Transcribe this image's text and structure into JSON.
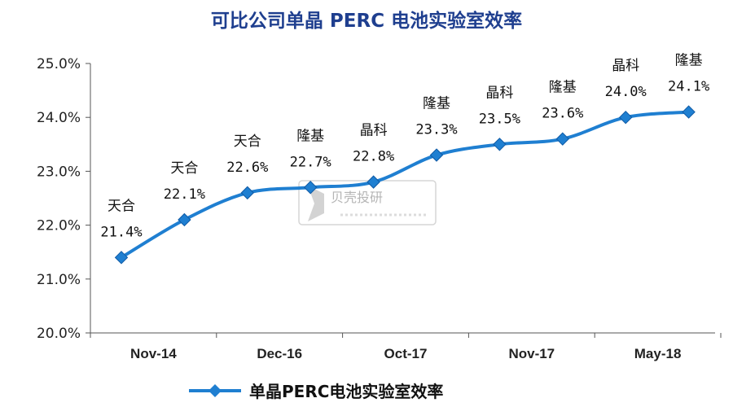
{
  "chart_data": {
    "type": "line",
    "title": "可比公司单晶 PERC 电池实验室效率",
    "xlabel": "",
    "ylabel": "",
    "ylim": [
      20.0,
      25.0
    ],
    "y_ticks": [
      "20.0%",
      "21.0%",
      "22.0%",
      "23.0%",
      "24.0%",
      "25.0%"
    ],
    "x_tick_labels": [
      "Nov-14",
      "Dec-16",
      "Oct-17",
      "Nov-17",
      "May-18"
    ],
    "grid": false,
    "legend_position": "bottom",
    "series": [
      {
        "name": "单晶PERC电池实验室效率",
        "color": "#1f7fd1",
        "values": [
          21.4,
          22.1,
          22.6,
          22.7,
          22.8,
          23.3,
          23.5,
          23.6,
          24.0,
          24.1
        ]
      }
    ],
    "data_labels": [
      {
        "company": "天合",
        "value": "21.4%"
      },
      {
        "company": "天合",
        "value": "22.1%"
      },
      {
        "company": "天合",
        "value": "22.6%"
      },
      {
        "company": "隆基",
        "value": "22.7%"
      },
      {
        "company": "晶科",
        "value": "22.8%"
      },
      {
        "company": "隆基",
        "value": "23.3%"
      },
      {
        "company": "晶科",
        "value": "23.5%"
      },
      {
        "company": "隆基",
        "value": "23.6%"
      },
      {
        "company": "晶科",
        "value": "24.0%"
      },
      {
        "company": "隆基",
        "value": "24.1%"
      }
    ]
  },
  "watermark": {
    "name": "贝壳投研"
  },
  "colors": {
    "title": "#1f3f8f",
    "line": "#1f7fd1",
    "marker": "#1f7fd1"
  }
}
